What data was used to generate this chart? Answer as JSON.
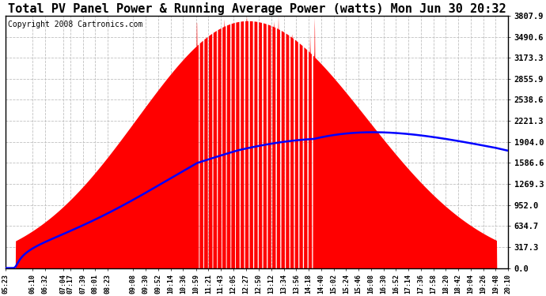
{
  "title": "Total PV Panel Power & Running Average Power (watts) Mon Jun 30 20:32",
  "copyright": "Copyright 2008 Cartronics.com",
  "ymin": 0.0,
  "ymax": 3807.9,
  "yticks": [
    0.0,
    317.3,
    634.7,
    952.0,
    1269.3,
    1586.6,
    1904.0,
    2221.3,
    2538.6,
    2855.9,
    3173.3,
    3490.6,
    3807.9
  ],
  "xtick_labels": [
    "05:23",
    "06:10",
    "06:32",
    "07:04",
    "07:17",
    "07:39",
    "08:01",
    "08:23",
    "09:08",
    "09:30",
    "09:52",
    "10:14",
    "10:36",
    "10:59",
    "11:21",
    "11:43",
    "12:05",
    "12:27",
    "12:50",
    "13:12",
    "13:34",
    "13:56",
    "14:18",
    "14:40",
    "15:02",
    "15:24",
    "15:46",
    "16:08",
    "16:30",
    "16:52",
    "17:14",
    "17:36",
    "17:58",
    "18:20",
    "18:42",
    "19:04",
    "19:26",
    "19:48",
    "20:10"
  ],
  "background_color": "#ffffff",
  "plot_bg_color": "#ffffff",
  "grid_color": "#c0c0c0",
  "fill_color": "#ff0000",
  "line_color": "#0000ff",
  "title_fontsize": 11,
  "copyright_fontsize": 7
}
